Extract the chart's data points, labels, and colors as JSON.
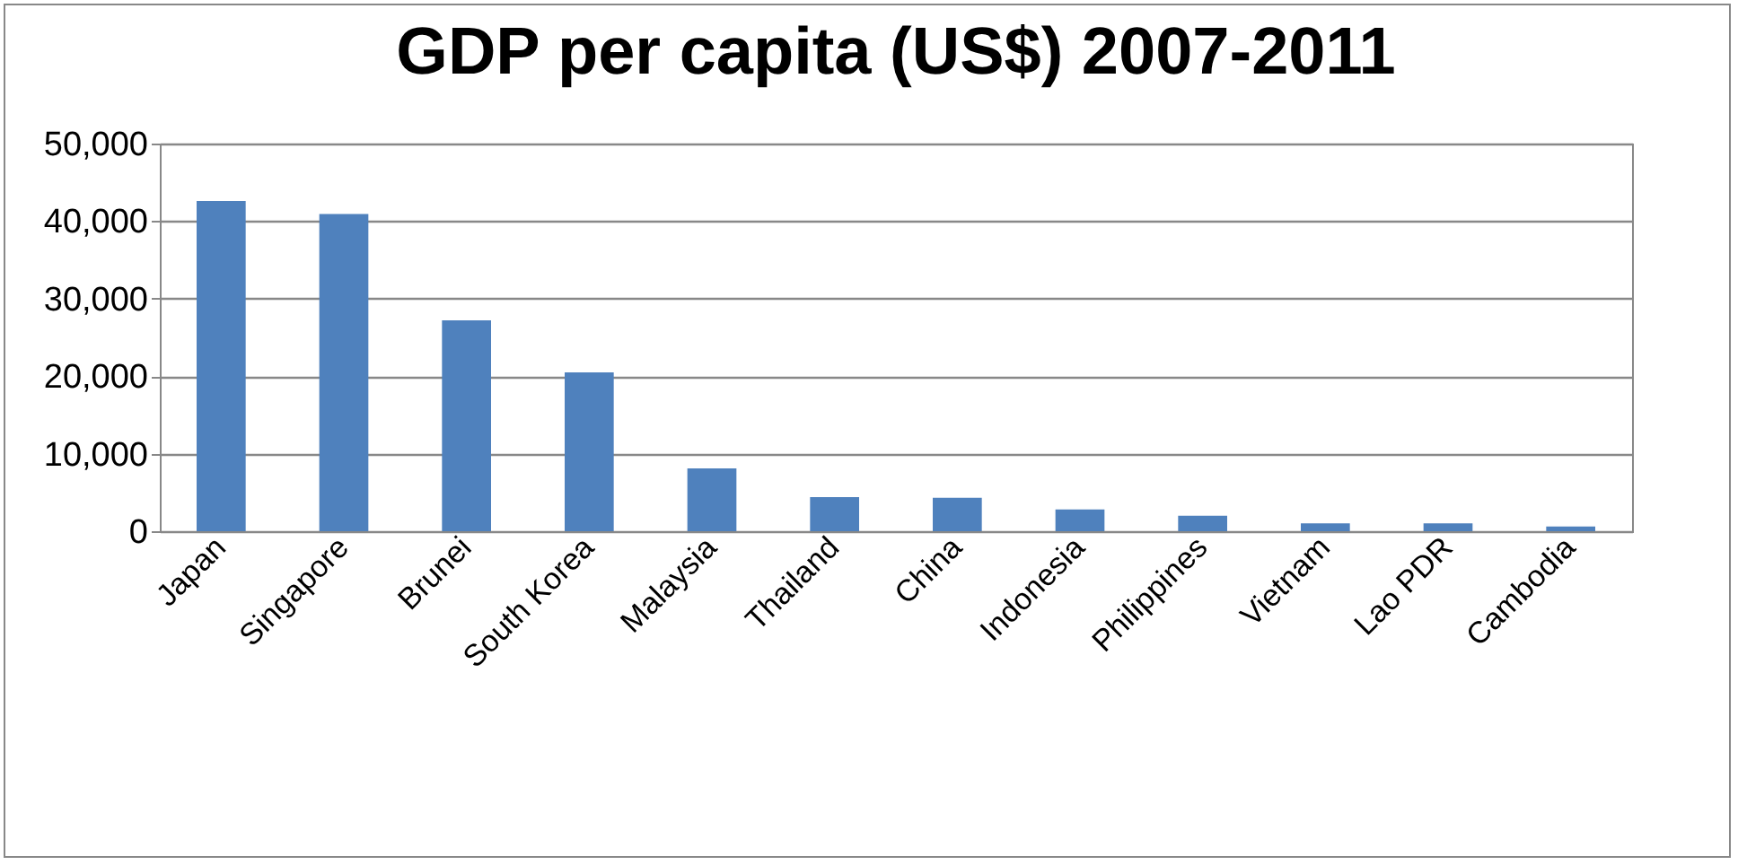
{
  "chart_data": {
    "type": "bar",
    "title": "GDP per capita (US$) 2007-2011",
    "categories": [
      "Japan",
      "Singapore",
      "Brunei",
      "South Korea",
      "Malaysia",
      "Thailand",
      "China",
      "Indonesia",
      "Philippines",
      "Vietnam",
      "Lao PDR",
      "Cambodia"
    ],
    "values": [
      42600,
      40900,
      27200,
      20500,
      8100,
      4400,
      4300,
      2800,
      2000,
      1000,
      1000,
      600
    ],
    "color": "#4f81bd",
    "ylim": [
      0,
      50000
    ],
    "yticks": [
      {
        "value": 0,
        "label": "0"
      },
      {
        "value": 10000,
        "label": "10,000"
      },
      {
        "value": 20000,
        "label": "20,000"
      },
      {
        "value": 30000,
        "label": "30,000"
      },
      {
        "value": 40000,
        "label": "40,000"
      },
      {
        "value": 50000,
        "label": "50,000"
      }
    ],
    "grid": "y"
  }
}
